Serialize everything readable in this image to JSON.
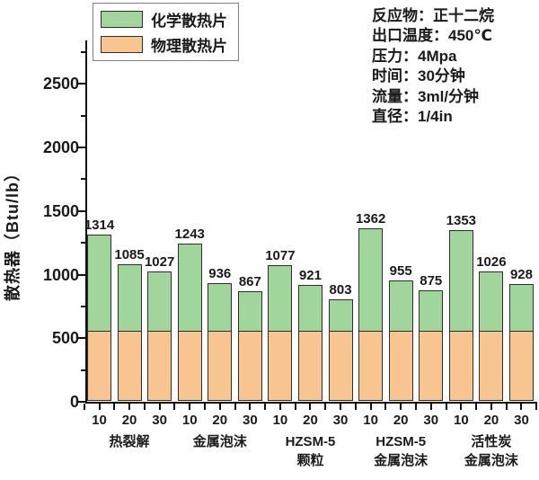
{
  "legend": {
    "items": [
      {
        "label": "化学散热片",
        "color": "#A0D69B"
      },
      {
        "label": "物理散热片",
        "color": "#F8C48F"
      }
    ]
  },
  "annotations": [
    "反应物：正十二烷",
    "出口温度：450℃",
    "压力：4Mpa",
    "时间：30分钟",
    "流量：3ml/分钟",
    "直径：1/4in"
  ],
  "chart_data": {
    "type": "bar",
    "stacked": true,
    "title": "",
    "ylabel": "散热器（Btu/lb）",
    "xlabel": "",
    "ylim": [
      0,
      2850
    ],
    "y_major_ticks": [
      0,
      500,
      1000,
      1500,
      2000,
      2500
    ],
    "y_minor_ticks": [
      250,
      750,
      1250,
      1750,
      2250,
      2750
    ],
    "grid": false,
    "legend_position": "top-left",
    "x_tick_labels_per_group": [
      "10",
      "20",
      "30"
    ],
    "groups": [
      {
        "label_lines": [
          "热裂解"
        ],
        "totals": [
          1314,
          1085,
          1027
        ]
      },
      {
        "label_lines": [
          "金属泡沫"
        ],
        "totals": [
          1243,
          936,
          867
        ]
      },
      {
        "label_lines": [
          "HZSM-5",
          "颗粒"
        ],
        "totals": [
          1077,
          921,
          803
        ]
      },
      {
        "label_lines": [
          "HZSM-5",
          "金属泡沫"
        ],
        "totals": [
          1362,
          955,
          875
        ]
      },
      {
        "label_lines": [
          "活性炭",
          "金属泡沫"
        ],
        "totals": [
          1353,
          1026,
          928
        ]
      }
    ],
    "series": [
      {
        "name": "物理散热片",
        "color": "#F8C48F",
        "role": "bottom-segment",
        "constant_value_estimate": 550
      },
      {
        "name": "化学散热片",
        "color": "#A0D69B",
        "role": "top-segment",
        "value": "total - 550"
      }
    ],
    "bar_value_labels_show_totals": true
  }
}
